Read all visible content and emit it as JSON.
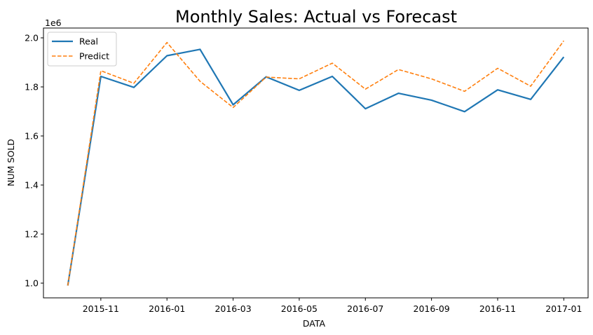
{
  "chart_data": {
    "type": "line",
    "title": "Monthly Sales: Actual vs Forecast",
    "xlabel": "DATA",
    "ylabel": "NUM SOLD",
    "y_offset_label": "1e6",
    "x": [
      "2015-10",
      "2015-11",
      "2015-12",
      "2016-01",
      "2016-02",
      "2016-03",
      "2016-04",
      "2016-05",
      "2016-06",
      "2016-07",
      "2016-08",
      "2016-09",
      "2016-10",
      "2016-11",
      "2016-12",
      "2017-01"
    ],
    "x_ticks": [
      "2015-11",
      "2016-01",
      "2016-03",
      "2016-05",
      "2016-07",
      "2016-09",
      "2016-11",
      "2017-01"
    ],
    "y_ticks": [
      "1.0",
      "1.2",
      "1.4",
      "1.6",
      "1.8",
      "2.0"
    ],
    "ylim": [
      0.94,
      2.04
    ],
    "y_scale": 1000000,
    "grid": false,
    "legend_position": "top-left",
    "series": [
      {
        "name": "Real",
        "color": "#1f77b4",
        "style": "solid",
        "values": [
          990000,
          1843000,
          1798000,
          1927000,
          1953000,
          1727000,
          1841000,
          1786000,
          1843000,
          1711000,
          1774000,
          1746000,
          1699000,
          1788000,
          1749000,
          1922000
        ]
      },
      {
        "name": "Predict",
        "color": "#ff7f0e",
        "style": "dashed",
        "values": [
          990000,
          1866000,
          1815000,
          1981000,
          1823000,
          1716000,
          1840000,
          1833000,
          1897000,
          1791000,
          1871000,
          1833000,
          1782000,
          1876000,
          1803000,
          1988000
        ]
      }
    ]
  }
}
